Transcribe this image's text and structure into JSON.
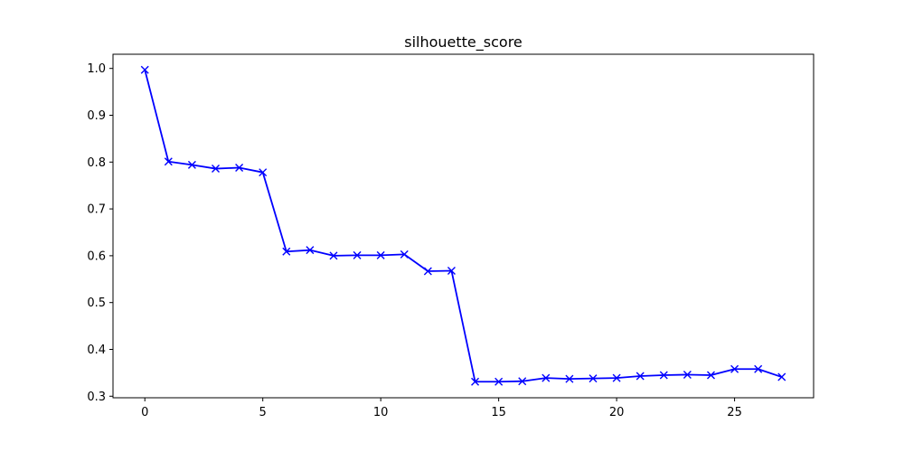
{
  "chart_data": {
    "type": "line",
    "title": "silhouette_score",
    "xlabel": "",
    "ylabel": "",
    "x": [
      0,
      1,
      2,
      3,
      4,
      5,
      6,
      7,
      8,
      9,
      10,
      11,
      12,
      13,
      14,
      15,
      16,
      17,
      18,
      19,
      20,
      21,
      22,
      23,
      24,
      25,
      26,
      27
    ],
    "series": [
      {
        "values": [
          0.997,
          0.801,
          0.794,
          0.786,
          0.788,
          0.778,
          0.609,
          0.612,
          0.6,
          0.601,
          0.601,
          0.603,
          0.567,
          0.568,
          0.331,
          0.331,
          0.332,
          0.339,
          0.337,
          0.338,
          0.339,
          0.343,
          0.345,
          0.346,
          0.345,
          0.358,
          0.358,
          0.341
        ],
        "color": "#0000ff",
        "marker": "x"
      }
    ],
    "xlim": [
      -1.35,
      28.35
    ],
    "ylim": [
      0.2967,
      1.0303
    ],
    "xticks": [
      0,
      5,
      10,
      15,
      20,
      25
    ],
    "xtick_labels": [
      "0",
      "5",
      "10",
      "15",
      "20",
      "25"
    ],
    "yticks": [
      0.3,
      0.4,
      0.5,
      0.6,
      0.7,
      0.8,
      0.9,
      1.0
    ],
    "ytick_labels": [
      "0.3",
      "0.4",
      "0.5",
      "0.6",
      "0.7",
      "0.8",
      "0.9",
      "1.0"
    ],
    "grid": false,
    "legend": "none"
  }
}
